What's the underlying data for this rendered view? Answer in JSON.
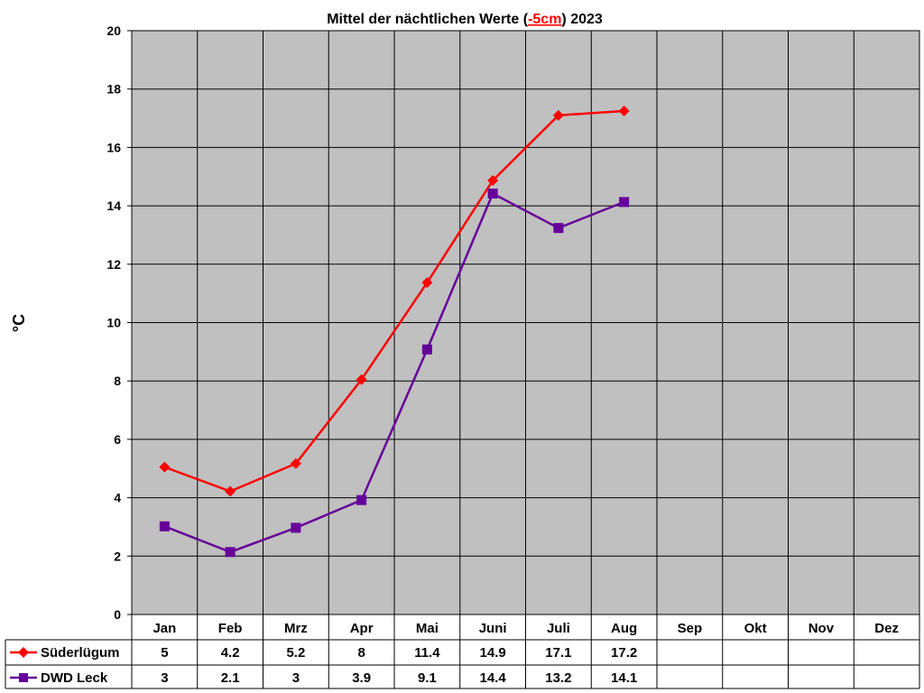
{
  "chart_data": {
    "type": "line",
    "title": {
      "before": "Mittel der nächtlichen Werte (",
      "highlight": "-5cm",
      "after": ") 2023",
      "highlight_color": "#ff0000"
    },
    "ylabel": "°C",
    "xlabel": "",
    "ylim": [
      0,
      20
    ],
    "yticks": [
      "0",
      "2",
      "4",
      "6",
      "8",
      "10",
      "12",
      "14",
      "16",
      "18",
      "20"
    ],
    "grid": true,
    "plot_background": "#c0c0c0",
    "categories": [
      "Jan",
      "Feb",
      "Mrz",
      "Apr",
      "Mai",
      "Juni",
      "Juli",
      "Aug",
      "Sep",
      "Okt",
      "Nov",
      "Dez"
    ],
    "series": [
      {
        "name": "Süderlügum",
        "color": "#ff0000",
        "marker": "diamond",
        "values": [
          5.05,
          4.22,
          5.17,
          8.05,
          11.37,
          14.87,
          17.1,
          17.25,
          null,
          null,
          null,
          null
        ],
        "table_values": [
          "5",
          "4.2",
          "5.2",
          "8",
          "11.4",
          "14.9",
          "17.1",
          "17.2",
          "",
          "",
          "",
          ""
        ]
      },
      {
        "name": "DWD Leck",
        "color": "#660099",
        "marker": "square",
        "values": [
          3.02,
          2.14,
          2.97,
          3.92,
          9.08,
          14.42,
          13.24,
          14.13,
          null,
          null,
          null,
          null
        ],
        "table_values": [
          "3",
          "2.1",
          "3",
          "3.9",
          "9.1",
          "14.4",
          "13.2",
          "14.1",
          "",
          "",
          "",
          ""
        ]
      }
    ],
    "legend_placement": "data-table"
  }
}
